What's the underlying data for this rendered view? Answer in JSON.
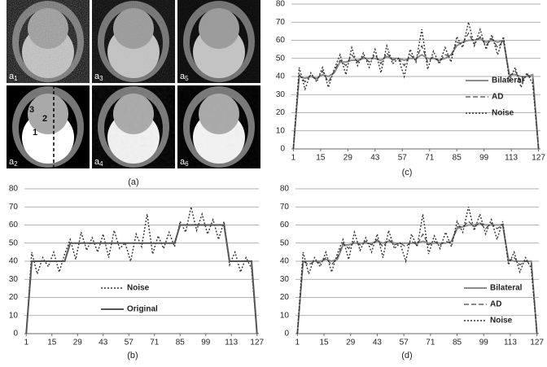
{
  "image_panel": {
    "caption": "(a)",
    "labels": [
      {
        "letter": "a",
        "index": "1"
      },
      {
        "letter": "a",
        "index": "3"
      },
      {
        "letter": "a",
        "index": "5"
      },
      {
        "letter": "a",
        "index": "2"
      },
      {
        "letter": "a",
        "index": "4"
      },
      {
        "letter": "a",
        "index": "6"
      }
    ],
    "regions": [
      "1",
      "2",
      "3"
    ]
  },
  "chart_data": [
    {
      "type": "line",
      "caption": "(c)",
      "legend": "right",
      "grid": true,
      "xlim": [
        0,
        128
      ],
      "ylim": [
        0,
        80
      ],
      "xticks": [
        1,
        15,
        29,
        43,
        57,
        71,
        85,
        99,
        113,
        127
      ],
      "yticks": [
        0,
        10,
        20,
        30,
        40,
        50,
        60,
        70,
        80
      ],
      "x": [
        1,
        4,
        7,
        10,
        13,
        16,
        19,
        22,
        25,
        28,
        31,
        34,
        37,
        40,
        43,
        46,
        49,
        52,
        55,
        58,
        61,
        64,
        67,
        70,
        73,
        76,
        79,
        82,
        85,
        88,
        91,
        94,
        97,
        100,
        103,
        106,
        109,
        112,
        115,
        118,
        121,
        124,
        127
      ],
      "series": [
        {
          "name": "Bilateral",
          "color": "#8c8c8c",
          "style": "solid",
          "values": [
            0,
            40,
            39,
            40,
            39,
            41,
            40,
            42,
            48,
            48,
            49,
            49,
            50,
            50,
            50,
            49,
            51,
            50,
            50,
            49,
            50,
            50,
            52,
            50,
            50,
            49,
            50,
            52,
            57,
            59,
            60,
            60,
            61,
            59,
            60,
            59,
            60,
            41,
            41,
            40,
            40,
            41,
            0
          ]
        },
        {
          "name": "AD",
          "color": "#444444",
          "style": "dashed",
          "values": [
            0,
            41,
            37,
            41,
            38,
            43,
            37,
            43,
            49,
            46,
            52,
            48,
            51,
            48,
            52,
            47,
            53,
            49,
            50,
            46,
            52,
            49,
            57,
            48,
            51,
            48,
            52,
            51,
            59,
            58,
            64,
            58,
            62,
            57,
            61,
            56,
            60,
            40,
            43,
            37,
            41,
            39,
            0
          ]
        },
        {
          "name": "Noise",
          "color": "#333333",
          "style": "dotted",
          "values": [
            0,
            45,
            33,
            42,
            37,
            45,
            34,
            44,
            52,
            41,
            56,
            46,
            53,
            45,
            55,
            42,
            57,
            47,
            50,
            40,
            55,
            48,
            66,
            44,
            54,
            47,
            56,
            48,
            62,
            56,
            70,
            57,
            66,
            55,
            63,
            52,
            62,
            38,
            45,
            34,
            42,
            36,
            0
          ]
        }
      ]
    },
    {
      "type": "line",
      "caption": "(b)",
      "legend": "lower center",
      "grid": true,
      "xlim": [
        0,
        128
      ],
      "ylim": [
        0,
        80
      ],
      "xticks": [
        1,
        15,
        29,
        43,
        57,
        71,
        85,
        99,
        113,
        127
      ],
      "yticks": [
        0,
        10,
        20,
        30,
        40,
        50,
        60,
        70,
        80
      ],
      "x": [
        1,
        4,
        7,
        10,
        13,
        16,
        19,
        22,
        25,
        28,
        31,
        34,
        37,
        40,
        43,
        46,
        49,
        52,
        55,
        58,
        61,
        64,
        67,
        70,
        73,
        76,
        79,
        82,
        85,
        88,
        91,
        94,
        97,
        100,
        103,
        106,
        109,
        112,
        115,
        118,
        121,
        124,
        127
      ],
      "series": [
        {
          "name": "Noise",
          "color": "#333333",
          "style": "dotted",
          "values": [
            0,
            45,
            33,
            42,
            37,
            45,
            34,
            44,
            52,
            41,
            56,
            46,
            53,
            45,
            55,
            42,
            57,
            47,
            50,
            40,
            55,
            48,
            66,
            44,
            54,
            47,
            56,
            48,
            62,
            56,
            70,
            57,
            66,
            55,
            63,
            52,
            62,
            38,
            45,
            34,
            42,
            36,
            0
          ]
        },
        {
          "name": "Original",
          "color": "#555555",
          "style": "solid",
          "values": [
            0,
            40,
            40,
            40,
            40,
            40,
            40,
            40,
            50,
            50,
            50,
            50,
            50,
            50,
            50,
            50,
            50,
            50,
            50,
            50,
            50,
            50,
            50,
            50,
            50,
            50,
            50,
            50,
            60,
            60,
            60,
            60,
            60,
            60,
            60,
            60,
            60,
            40,
            40,
            40,
            40,
            40,
            0
          ]
        }
      ]
    },
    {
      "type": "line",
      "caption": "(d)",
      "legend": "lower right",
      "grid": true,
      "xlim": [
        0,
        128
      ],
      "ylim": [
        0,
        80
      ],
      "xticks": [
        1,
        15,
        29,
        43,
        57,
        71,
        85,
        99,
        113,
        127
      ],
      "yticks": [
        0,
        10,
        20,
        30,
        40,
        50,
        60,
        70,
        80
      ],
      "x": [
        1,
        4,
        7,
        10,
        13,
        16,
        19,
        22,
        25,
        28,
        31,
        34,
        37,
        40,
        43,
        46,
        49,
        52,
        55,
        58,
        61,
        64,
        67,
        70,
        73,
        76,
        79,
        82,
        85,
        88,
        91,
        94,
        97,
        100,
        103,
        106,
        109,
        112,
        115,
        118,
        121,
        124,
        127
      ],
      "series": [
        {
          "name": "Bilateral",
          "color": "#8c8c8c",
          "style": "solid",
          "values": [
            0,
            40,
            40,
            40,
            40,
            41,
            40,
            41,
            49,
            49,
            50,
            50,
            50,
            50,
            51,
            50,
            51,
            50,
            50,
            50,
            50,
            50,
            51,
            50,
            50,
            50,
            50,
            51,
            58,
            59,
            60,
            60,
            61,
            60,
            60,
            60,
            60,
            41,
            40,
            40,
            40,
            40,
            0
          ]
        },
        {
          "name": "AD",
          "color": "#444444",
          "style": "dashed",
          "values": [
            0,
            40,
            38,
            40,
            39,
            42,
            38,
            42,
            50,
            47,
            51,
            49,
            51,
            49,
            52,
            48,
            52,
            49,
            50,
            48,
            51,
            49,
            55,
            49,
            51,
            49,
            51,
            50,
            59,
            59,
            62,
            59,
            61,
            58,
            61,
            58,
            60,
            40,
            42,
            38,
            40,
            39,
            0
          ]
        },
        {
          "name": "Noise",
          "color": "#333333",
          "style": "dotted",
          "values": [
            0,
            45,
            33,
            42,
            37,
            45,
            34,
            44,
            52,
            41,
            56,
            46,
            53,
            45,
            55,
            42,
            57,
            47,
            50,
            40,
            55,
            48,
            66,
            44,
            54,
            47,
            56,
            48,
            62,
            56,
            70,
            57,
            66,
            55,
            63,
            52,
            62,
            38,
            45,
            34,
            42,
            36,
            0
          ]
        }
      ]
    }
  ]
}
